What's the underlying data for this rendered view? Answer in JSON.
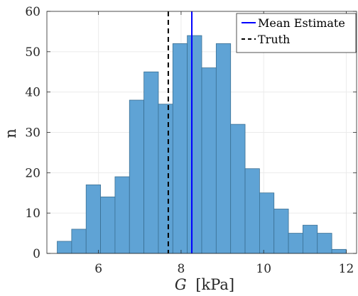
{
  "chart_data": {
    "type": "bar",
    "subtype": "histogram",
    "bin_edges": [
      5.0,
      5.35,
      5.7,
      6.05,
      6.4,
      6.75,
      7.1,
      7.45,
      7.8,
      8.15,
      8.5,
      8.85,
      9.2,
      9.55,
      9.9,
      10.25,
      10.6,
      10.95,
      11.3,
      11.65,
      12.0
    ],
    "values": [
      3,
      6,
      17,
      14,
      19,
      38,
      45,
      37,
      52,
      54,
      46,
      52,
      32,
      21,
      15,
      11,
      5,
      7,
      5,
      1
    ],
    "xlim": [
      4.75,
      12.25
    ],
    "ylim": [
      0,
      60
    ],
    "xticks": [
      6,
      8,
      10,
      12
    ],
    "yticks": [
      0,
      10,
      20,
      30,
      40,
      50,
      60
    ],
    "xlabel_var": "G",
    "xlabel_unit": "[kPa]",
    "ylabel": "n",
    "grid": true,
    "legend_placement": "top-right",
    "bar_color": "#5fa3d5",
    "bar_edge_color": "#3a6f93",
    "lines": [
      {
        "name": "Mean Estimate",
        "x": 8.26,
        "color": "#0000ff",
        "style": "solid"
      },
      {
        "name": "Truth",
        "x": 7.69,
        "color": "#000000",
        "style": "dashed"
      }
    ]
  }
}
